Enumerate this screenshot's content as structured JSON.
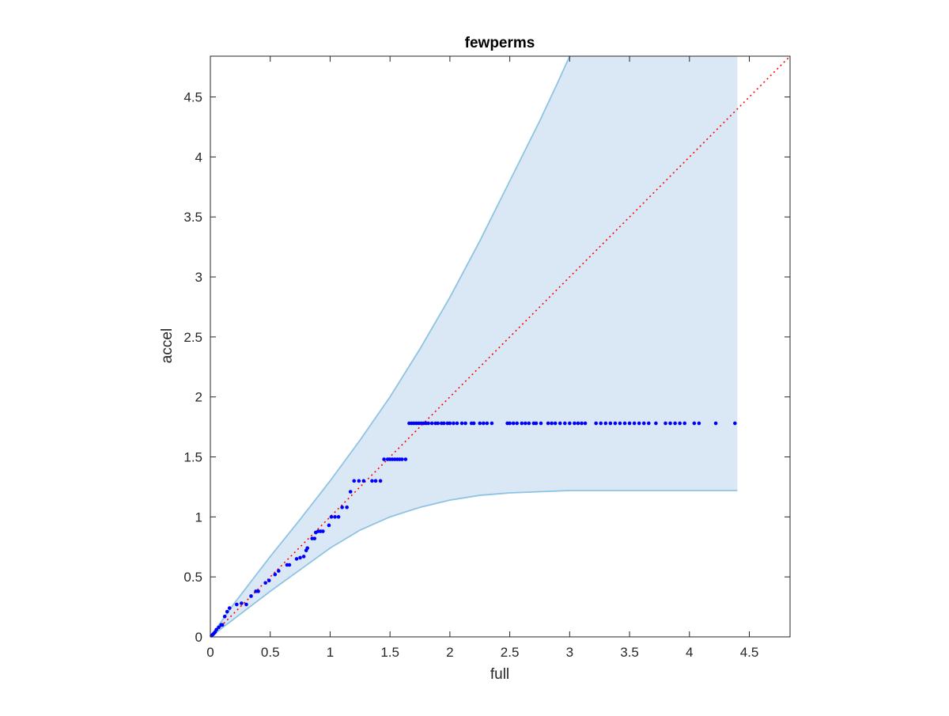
{
  "chart_data": {
    "type": "scatter",
    "title": "fewperms",
    "xlabel": "full",
    "ylabel": "accel",
    "xlim": [
      0,
      4.84
    ],
    "ylim": [
      0,
      4.84
    ],
    "xticks": [
      0,
      0.5,
      1,
      1.5,
      2,
      2.5,
      3,
      3.5,
      4,
      4.5
    ],
    "yticks": [
      0,
      0.5,
      1,
      1.5,
      2,
      2.5,
      3,
      3.5,
      4,
      4.5
    ],
    "xtick_labels": [
      "0",
      "0.5",
      "1",
      "1.5",
      "2",
      "2.5",
      "3",
      "3.5",
      "4",
      "4.5"
    ],
    "ytick_labels": [
      "0",
      "0.5",
      "1",
      "1.5",
      "2",
      "2.5",
      "3",
      "3.5",
      "4",
      "4.5"
    ],
    "grid": false,
    "band": {
      "color": "#d9e8f4",
      "edge_color": "#8fc3e3",
      "upper": [
        [
          0,
          0
        ],
        [
          0.2,
          0.28
        ],
        [
          0.5,
          0.67
        ],
        [
          0.75,
          0.98
        ],
        [
          1,
          1.3
        ],
        [
          1.25,
          1.64
        ],
        [
          1.5,
          2.0
        ],
        [
          1.75,
          2.4
        ],
        [
          2,
          2.83
        ],
        [
          2.25,
          3.3
        ],
        [
          2.5,
          3.8
        ],
        [
          2.75,
          4.3
        ],
        [
          2.9,
          4.62
        ],
        [
          3.0,
          4.84
        ]
      ],
      "lower": [
        [
          0,
          0
        ],
        [
          0.25,
          0.19
        ],
        [
          0.5,
          0.38
        ],
        [
          0.75,
          0.56
        ],
        [
          1,
          0.74
        ],
        [
          1.25,
          0.89
        ],
        [
          1.5,
          1.0
        ],
        [
          1.75,
          1.08
        ],
        [
          2,
          1.14
        ],
        [
          2.25,
          1.18
        ],
        [
          2.5,
          1.2
        ],
        [
          2.75,
          1.21
        ],
        [
          3,
          1.22
        ],
        [
          3.5,
          1.22
        ],
        [
          4,
          1.22
        ],
        [
          4.4,
          1.22
        ]
      ],
      "x_max": 4.4
    },
    "reference_line": {
      "color": "#ff0000",
      "style": "dotted",
      "from": [
        0,
        0
      ],
      "to": [
        4.84,
        4.84
      ]
    },
    "series": [
      {
        "color": "#0000ff",
        "points": [
          [
            0.01,
            0.01
          ],
          [
            0.02,
            0.02
          ],
          [
            0.03,
            0.03
          ],
          [
            0.04,
            0.04
          ],
          [
            0.05,
            0.06
          ],
          [
            0.07,
            0.08
          ],
          [
            0.09,
            0.1
          ],
          [
            0.1,
            0.1
          ],
          [
            0.12,
            0.17
          ],
          [
            0.14,
            0.21
          ],
          [
            0.16,
            0.24
          ],
          [
            0.22,
            0.27
          ],
          [
            0.26,
            0.28
          ],
          [
            0.3,
            0.27
          ],
          [
            0.34,
            0.34
          ],
          [
            0.38,
            0.38
          ],
          [
            0.4,
            0.38
          ],
          [
            0.46,
            0.45
          ],
          [
            0.49,
            0.47
          ],
          [
            0.54,
            0.52
          ],
          [
            0.57,
            0.55
          ],
          [
            0.64,
            0.6
          ],
          [
            0.66,
            0.6
          ],
          [
            0.72,
            0.65
          ],
          [
            0.75,
            0.66
          ],
          [
            0.78,
            0.67
          ],
          [
            0.8,
            0.72
          ],
          [
            0.81,
            0.74
          ],
          [
            0.85,
            0.82
          ],
          [
            0.87,
            0.82
          ],
          [
            0.88,
            0.87
          ],
          [
            0.9,
            0.88
          ],
          [
            0.92,
            0.88
          ],
          [
            0.94,
            0.88
          ],
          [
            0.99,
            0.93
          ],
          [
            1.01,
            1.0
          ],
          [
            1.04,
            1.0
          ],
          [
            1.07,
            1.0
          ],
          [
            1.1,
            1.08
          ],
          [
            1.14,
            1.08
          ],
          [
            1.17,
            1.21
          ],
          [
            1.2,
            1.3
          ],
          [
            1.24,
            1.3
          ],
          [
            1.28,
            1.3
          ],
          [
            1.35,
            1.3
          ],
          [
            1.38,
            1.3
          ],
          [
            1.42,
            1.3
          ],
          [
            1.45,
            1.48
          ],
          [
            1.48,
            1.48
          ],
          [
            1.5,
            1.48
          ],
          [
            1.52,
            1.48
          ],
          [
            1.54,
            1.48
          ],
          [
            1.56,
            1.48
          ],
          [
            1.58,
            1.48
          ],
          [
            1.6,
            1.48
          ],
          [
            1.63,
            1.48
          ],
          [
            1.66,
            1.78
          ],
          [
            1.68,
            1.78
          ],
          [
            1.7,
            1.78
          ],
          [
            1.72,
            1.78
          ],
          [
            1.74,
            1.78
          ],
          [
            1.76,
            1.78
          ],
          [
            1.78,
            1.78
          ],
          [
            1.8,
            1.78
          ],
          [
            1.82,
            1.78
          ],
          [
            1.85,
            1.78
          ],
          [
            1.88,
            1.78
          ],
          [
            1.9,
            1.78
          ],
          [
            1.93,
            1.78
          ],
          [
            1.95,
            1.78
          ],
          [
            1.98,
            1.78
          ],
          [
            2.0,
            1.78
          ],
          [
            2.03,
            1.78
          ],
          [
            2.06,
            1.78
          ],
          [
            2.1,
            1.78
          ],
          [
            2.13,
            1.78
          ],
          [
            2.18,
            1.78
          ],
          [
            2.2,
            1.78
          ],
          [
            2.25,
            1.78
          ],
          [
            2.28,
            1.78
          ],
          [
            2.31,
            1.78
          ],
          [
            2.35,
            1.78
          ],
          [
            2.48,
            1.78
          ],
          [
            2.5,
            1.78
          ],
          [
            2.53,
            1.78
          ],
          [
            2.56,
            1.78
          ],
          [
            2.6,
            1.78
          ],
          [
            2.63,
            1.78
          ],
          [
            2.66,
            1.78
          ],
          [
            2.7,
            1.78
          ],
          [
            2.72,
            1.78
          ],
          [
            2.76,
            1.78
          ],
          [
            2.82,
            1.78
          ],
          [
            2.85,
            1.78
          ],
          [
            2.88,
            1.78
          ],
          [
            2.92,
            1.78
          ],
          [
            2.96,
            1.78
          ],
          [
            3.0,
            1.78
          ],
          [
            3.04,
            1.78
          ],
          [
            3.07,
            1.78
          ],
          [
            3.1,
            1.78
          ],
          [
            3.13,
            1.78
          ],
          [
            3.22,
            1.78
          ],
          [
            3.26,
            1.78
          ],
          [
            3.3,
            1.78
          ],
          [
            3.34,
            1.78
          ],
          [
            3.38,
            1.78
          ],
          [
            3.42,
            1.78
          ],
          [
            3.46,
            1.78
          ],
          [
            3.5,
            1.78
          ],
          [
            3.54,
            1.78
          ],
          [
            3.58,
            1.78
          ],
          [
            3.62,
            1.78
          ],
          [
            3.66,
            1.78
          ],
          [
            3.72,
            1.78
          ],
          [
            3.8,
            1.78
          ],
          [
            3.84,
            1.78
          ],
          [
            3.88,
            1.78
          ],
          [
            3.92,
            1.78
          ],
          [
            3.96,
            1.78
          ],
          [
            4.04,
            1.78
          ],
          [
            4.08,
            1.78
          ],
          [
            4.22,
            1.78
          ],
          [
            4.38,
            1.78
          ]
        ]
      }
    ]
  }
}
